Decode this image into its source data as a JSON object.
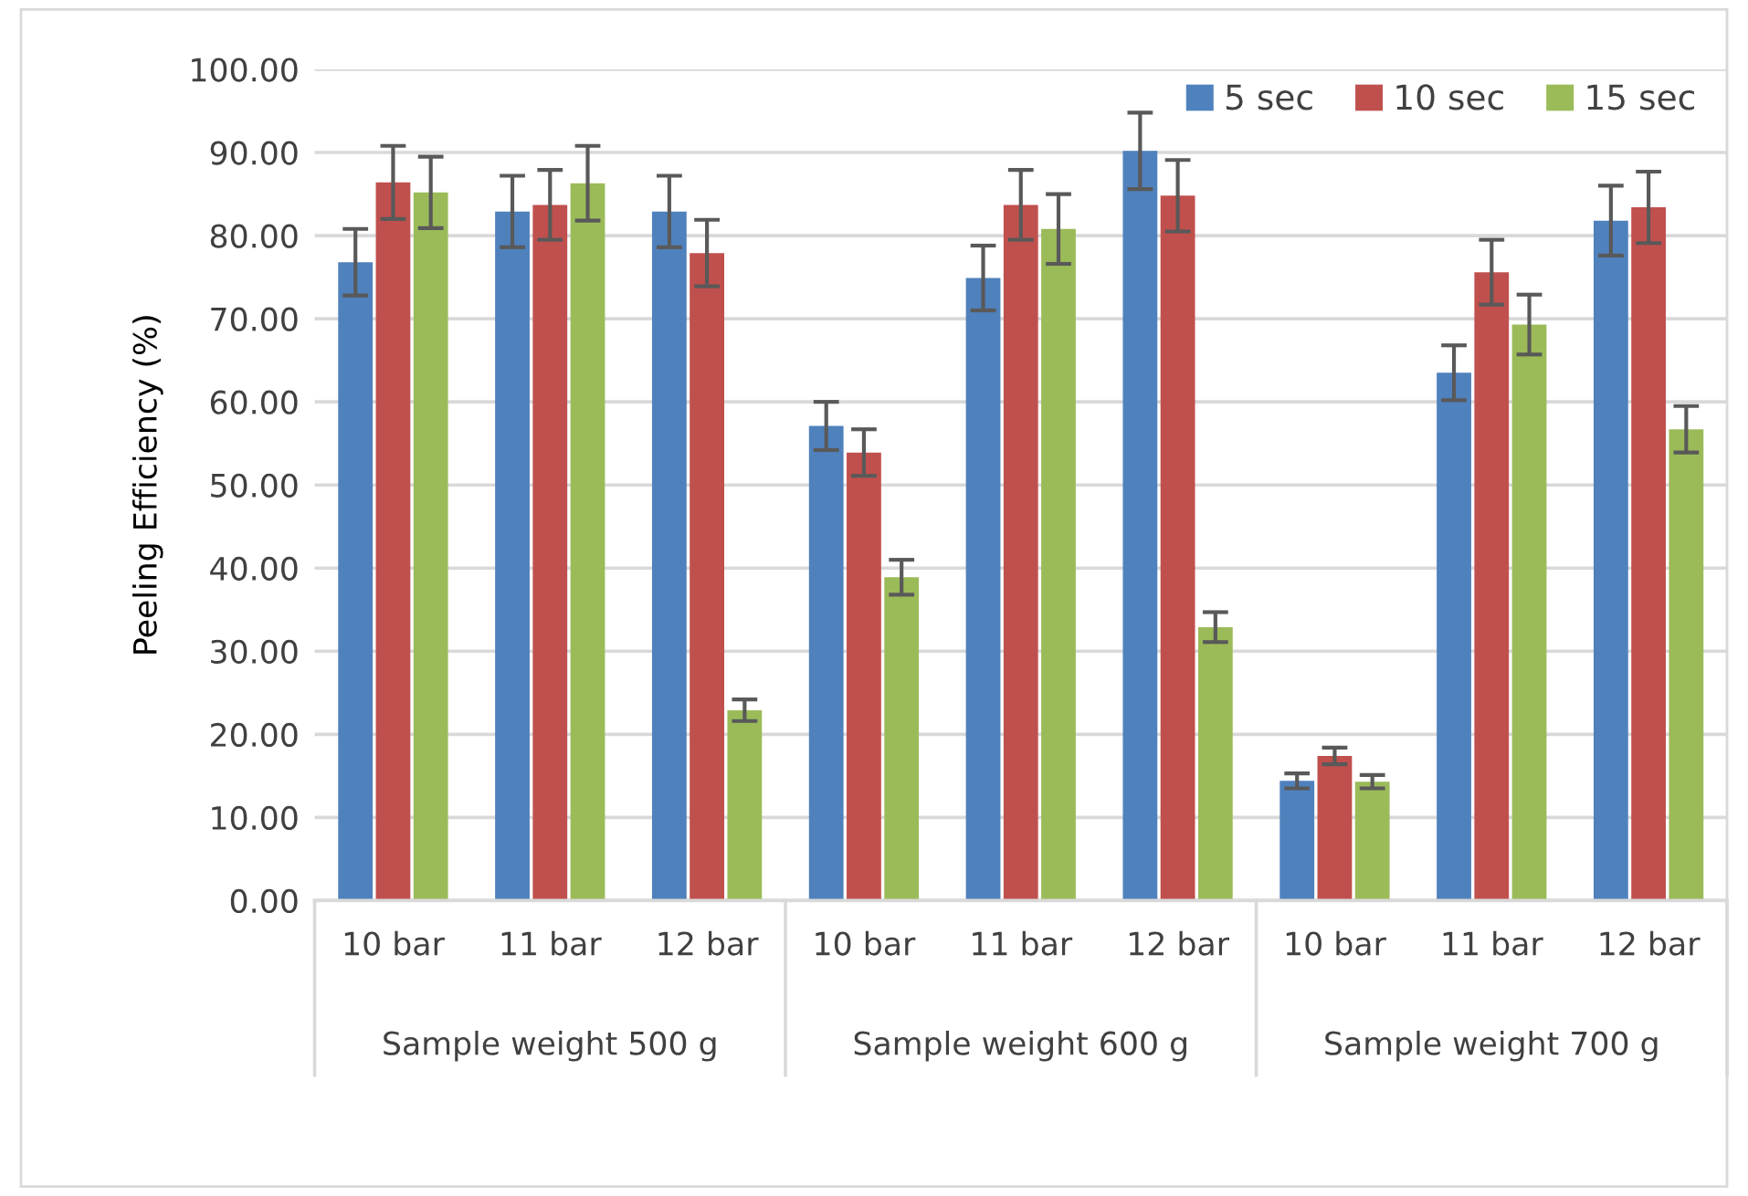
{
  "chart_data": {
    "type": "bar",
    "ylabel": "Peeling Efficiency (%)",
    "categories": [
      "10 bar",
      "11 bar",
      "12 bar",
      "10 bar",
      "11 bar",
      "12 bar",
      "10 bar",
      "11 bar",
      "12 bar"
    ],
    "annotations": [
      "Sample weight 500 g",
      "Sample weight 600 g",
      "Sample weight 700 g"
    ],
    "series": [
      {
        "name": "5 sec",
        "color": "#4f81bd",
        "values": [
          76.8,
          82.9,
          82.9,
          57.1,
          74.9,
          90.2,
          14.4,
          63.5,
          81.8
        ],
        "errors": [
          4.0,
          4.3,
          4.3,
          2.9,
          3.9,
          4.6,
          0.9,
          3.3,
          4.2
        ]
      },
      {
        "name": "10 sec",
        "color": "#c0504d",
        "values": [
          86.4,
          83.7,
          77.9,
          53.9,
          83.7,
          84.8,
          17.4,
          75.6,
          83.4
        ],
        "errors": [
          4.4,
          4.2,
          4.0,
          2.8,
          4.2,
          4.3,
          1.0,
          3.9,
          4.3
        ]
      },
      {
        "name": "15 sec",
        "color": "#9bbb59",
        "values": [
          85.2,
          86.3,
          22.9,
          38.9,
          80.8,
          32.9,
          14.3,
          69.3,
          56.7
        ],
        "errors": [
          4.3,
          4.5,
          1.3,
          2.1,
          4.2,
          1.8,
          0.8,
          3.6,
          2.8
        ]
      }
    ],
    "ylim": [
      0,
      100
    ],
    "yticks": [
      {
        "value": 0,
        "label": "0.00"
      },
      {
        "value": 10,
        "label": "10.00"
      },
      {
        "value": 20,
        "label": "20.00"
      },
      {
        "value": 30,
        "label": "30.00"
      },
      {
        "value": 40,
        "label": "40.00"
      },
      {
        "value": 50,
        "label": "50.00"
      },
      {
        "value": 60,
        "label": "60.00"
      },
      {
        "value": 70,
        "label": "70.00"
      },
      {
        "value": 80,
        "label": "80.00"
      },
      {
        "value": 90,
        "label": "90.00"
      },
      {
        "value": 100,
        "label": "100.00"
      }
    ],
    "grid": "y",
    "legend": "top right"
  }
}
